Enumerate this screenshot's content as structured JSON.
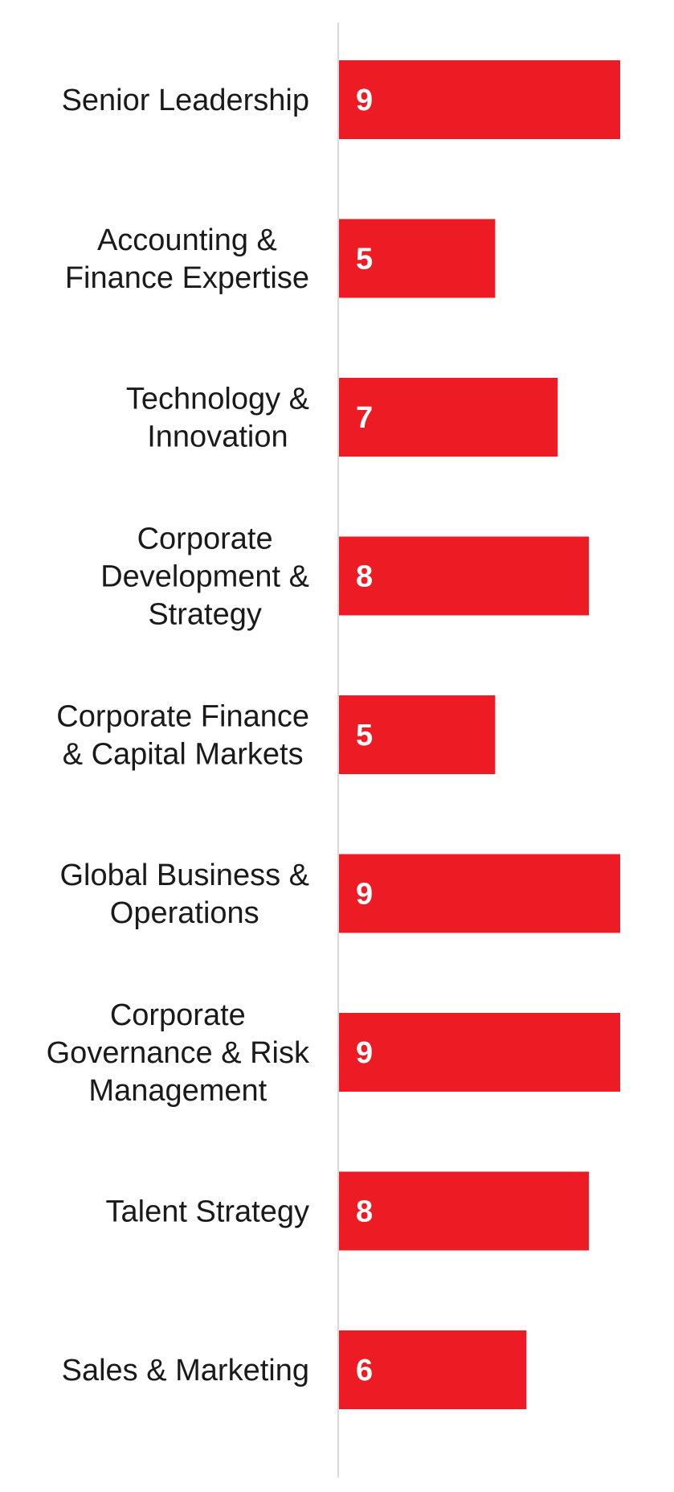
{
  "chart_data": {
    "type": "bar",
    "orientation": "horizontal",
    "title": "",
    "xlabel": "",
    "ylabel": "",
    "categories": [
      [
        "Senior Leadership"
      ],
      [
        "Accounting &",
        "Finance Expertise"
      ],
      [
        "Technology &",
        "Innovation"
      ],
      [
        "Corporate",
        "Development &",
        "Strategy"
      ],
      [
        "Corporate Finance",
        "& Capital Markets"
      ],
      [
        "Global Business &",
        "Operations"
      ],
      [
        "Corporate",
        "Governance & Risk",
        "Management"
      ],
      [
        "Talent Strategy"
      ],
      [
        "Sales & Marketing"
      ]
    ],
    "values": [
      9,
      5,
      7,
      8,
      5,
      9,
      9,
      8,
      6
    ],
    "value_labels": [
      "9",
      "5",
      "7",
      "8",
      "5",
      "9",
      "9",
      "8",
      "6"
    ],
    "xlim": [
      0,
      9
    ],
    "grid": false,
    "legend": "none",
    "bar_color": "#ed1c24",
    "axis_line_color": "#d9d9d9",
    "value_label_position": "inside-left"
  }
}
